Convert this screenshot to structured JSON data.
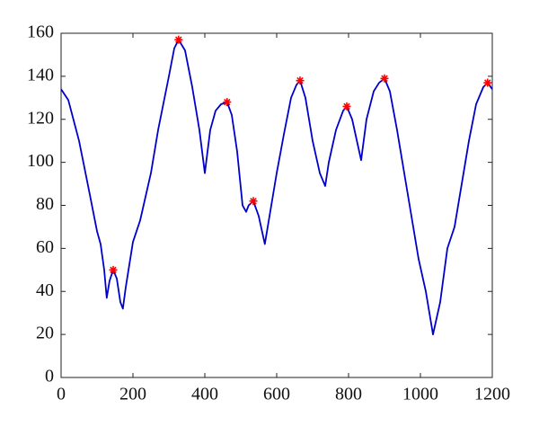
{
  "chart_data": {
    "type": "line",
    "xlim": [
      0,
      1200
    ],
    "xticks": [
      0,
      200,
      400,
      600,
      800,
      1000,
      1200
    ],
    "ylim": [
      0,
      160
    ],
    "yticks": [
      0,
      20,
      40,
      60,
      80,
      100,
      120,
      140,
      160
    ],
    "series": [
      {
        "color": "#0000cc",
        "marker": "line",
        "x": [
          0,
          20,
          50,
          80,
          100,
          110,
          120,
          127,
          135,
          145,
          155,
          165,
          172,
          180,
          200,
          220,
          250,
          270,
          300,
          315,
          327,
          345,
          365,
          385,
          400,
          415,
          430,
          445,
          462,
          475,
          490,
          505,
          515,
          522,
          535,
          550,
          567,
          580,
          600,
          620,
          640,
          655,
          665,
          680,
          700,
          720,
          735,
          745,
          765,
          785,
          795,
          810,
          835,
          850,
          870,
          885,
          900,
          915,
          935,
          955,
          975,
          995,
          1015,
          1035,
          1055,
          1075,
          1095,
          1115,
          1135,
          1155,
          1175,
          1187,
          1200
        ],
        "values": [
          134,
          129,
          110,
          85,
          68,
          62,
          50,
          37,
          45,
          50,
          46,
          35,
          32,
          42,
          63,
          73,
          95,
          115,
          140,
          153,
          157,
          152,
          135,
          115,
          95,
          115,
          124,
          127,
          128,
          122,
          105,
          80,
          77,
          80,
          82,
          75,
          62,
          75,
          95,
          113,
          130,
          136,
          138,
          130,
          110,
          95,
          89,
          100,
          115,
          124,
          126,
          120,
          101,
          120,
          133,
          137,
          139,
          133,
          115,
          95,
          75,
          55,
          40,
          20,
          35,
          60,
          70,
          90,
          110,
          127,
          135,
          137,
          134
        ]
      },
      {
        "color": "#ff0000",
        "marker": "star",
        "x": [
          145,
          327,
          462,
          535,
          665,
          795,
          900,
          1187
        ],
        "values": [
          50,
          157,
          128,
          82,
          138,
          126,
          139,
          137
        ]
      }
    ]
  }
}
